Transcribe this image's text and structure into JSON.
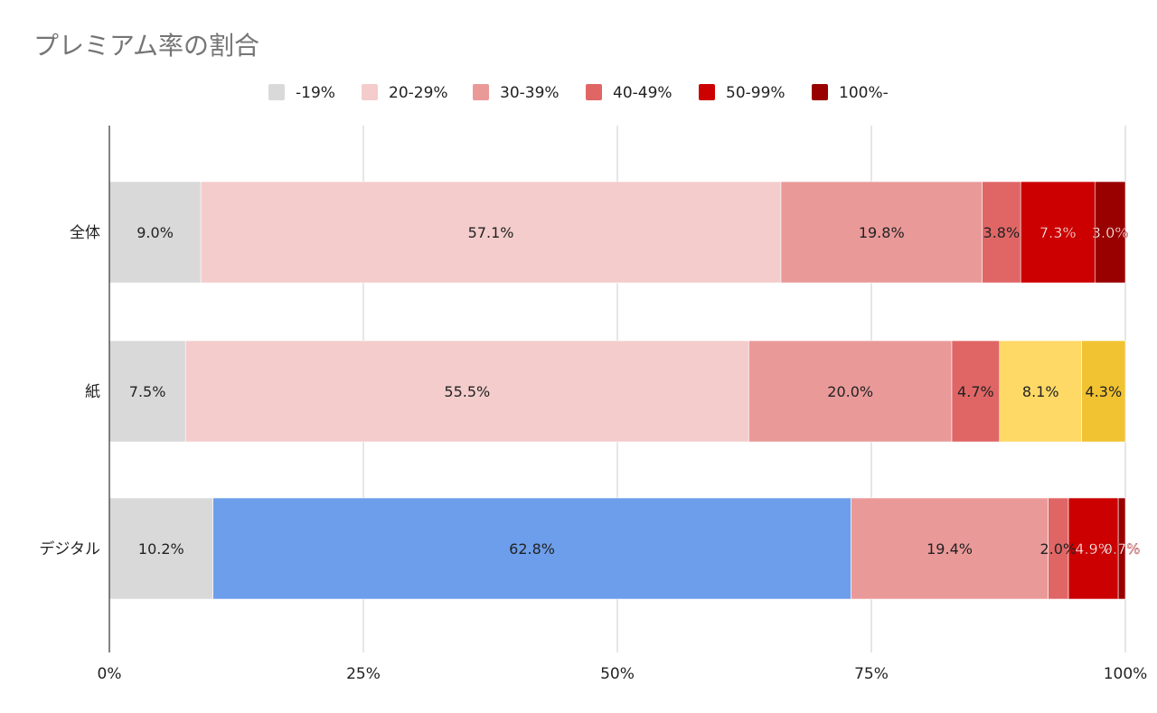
{
  "chart_data": {
    "type": "bar",
    "orientation": "horizontal",
    "stacked": "percent",
    "title": "プレミアム率の割合",
    "categories": [
      "全体",
      "紙",
      "デジタル"
    ],
    "series": [
      {
        "name": "-19%",
        "color": "#d9d9d9",
        "values": [
          9.0,
          7.5,
          10.2
        ]
      },
      {
        "name": "20-29%",
        "color": "#f4cccc",
        "values": [
          57.1,
          55.5,
          62.8
        ]
      },
      {
        "name": "30-39%",
        "color": "#ea9999",
        "values": [
          19.8,
          20.0,
          19.4
        ]
      },
      {
        "name": "40-49%",
        "color": "#e06666",
        "values": [
          3.8,
          4.7,
          2.0
        ]
      },
      {
        "name": "50-99%",
        "color": "#cc0000",
        "values": [
          7.3,
          8.1,
          4.9
        ]
      },
      {
        "name": "100%-",
        "color": "#990000",
        "values": [
          3.0,
          4.3,
          0.7
        ]
      }
    ],
    "data_labels": [
      [
        "9.0%",
        "57.1%",
        "19.8%",
        "3.8%",
        "7.3%",
        "3.0%"
      ],
      [
        "7.5%",
        "55.5%",
        "20.0%",
        "4.7%",
        "8.1%",
        "4.3%"
      ],
      [
        "10.2%",
        "62.8%",
        "19.4%",
        "2.0%",
        "4.9%",
        "0.7%"
      ]
    ],
    "cell_color_overrides": [
      {
        "row": 1,
        "series": 4,
        "color": "#ffd966"
      },
      {
        "row": 1,
        "series": 5,
        "color": "#f1c232"
      },
      {
        "row": 2,
        "series": 1,
        "color": "#6d9eeb"
      }
    ],
    "x_ticks": [
      "0%",
      "25%",
      "50%",
      "75%",
      "100%"
    ],
    "xlim": [
      0,
      100
    ],
    "grid": true,
    "legend_position": "top"
  }
}
